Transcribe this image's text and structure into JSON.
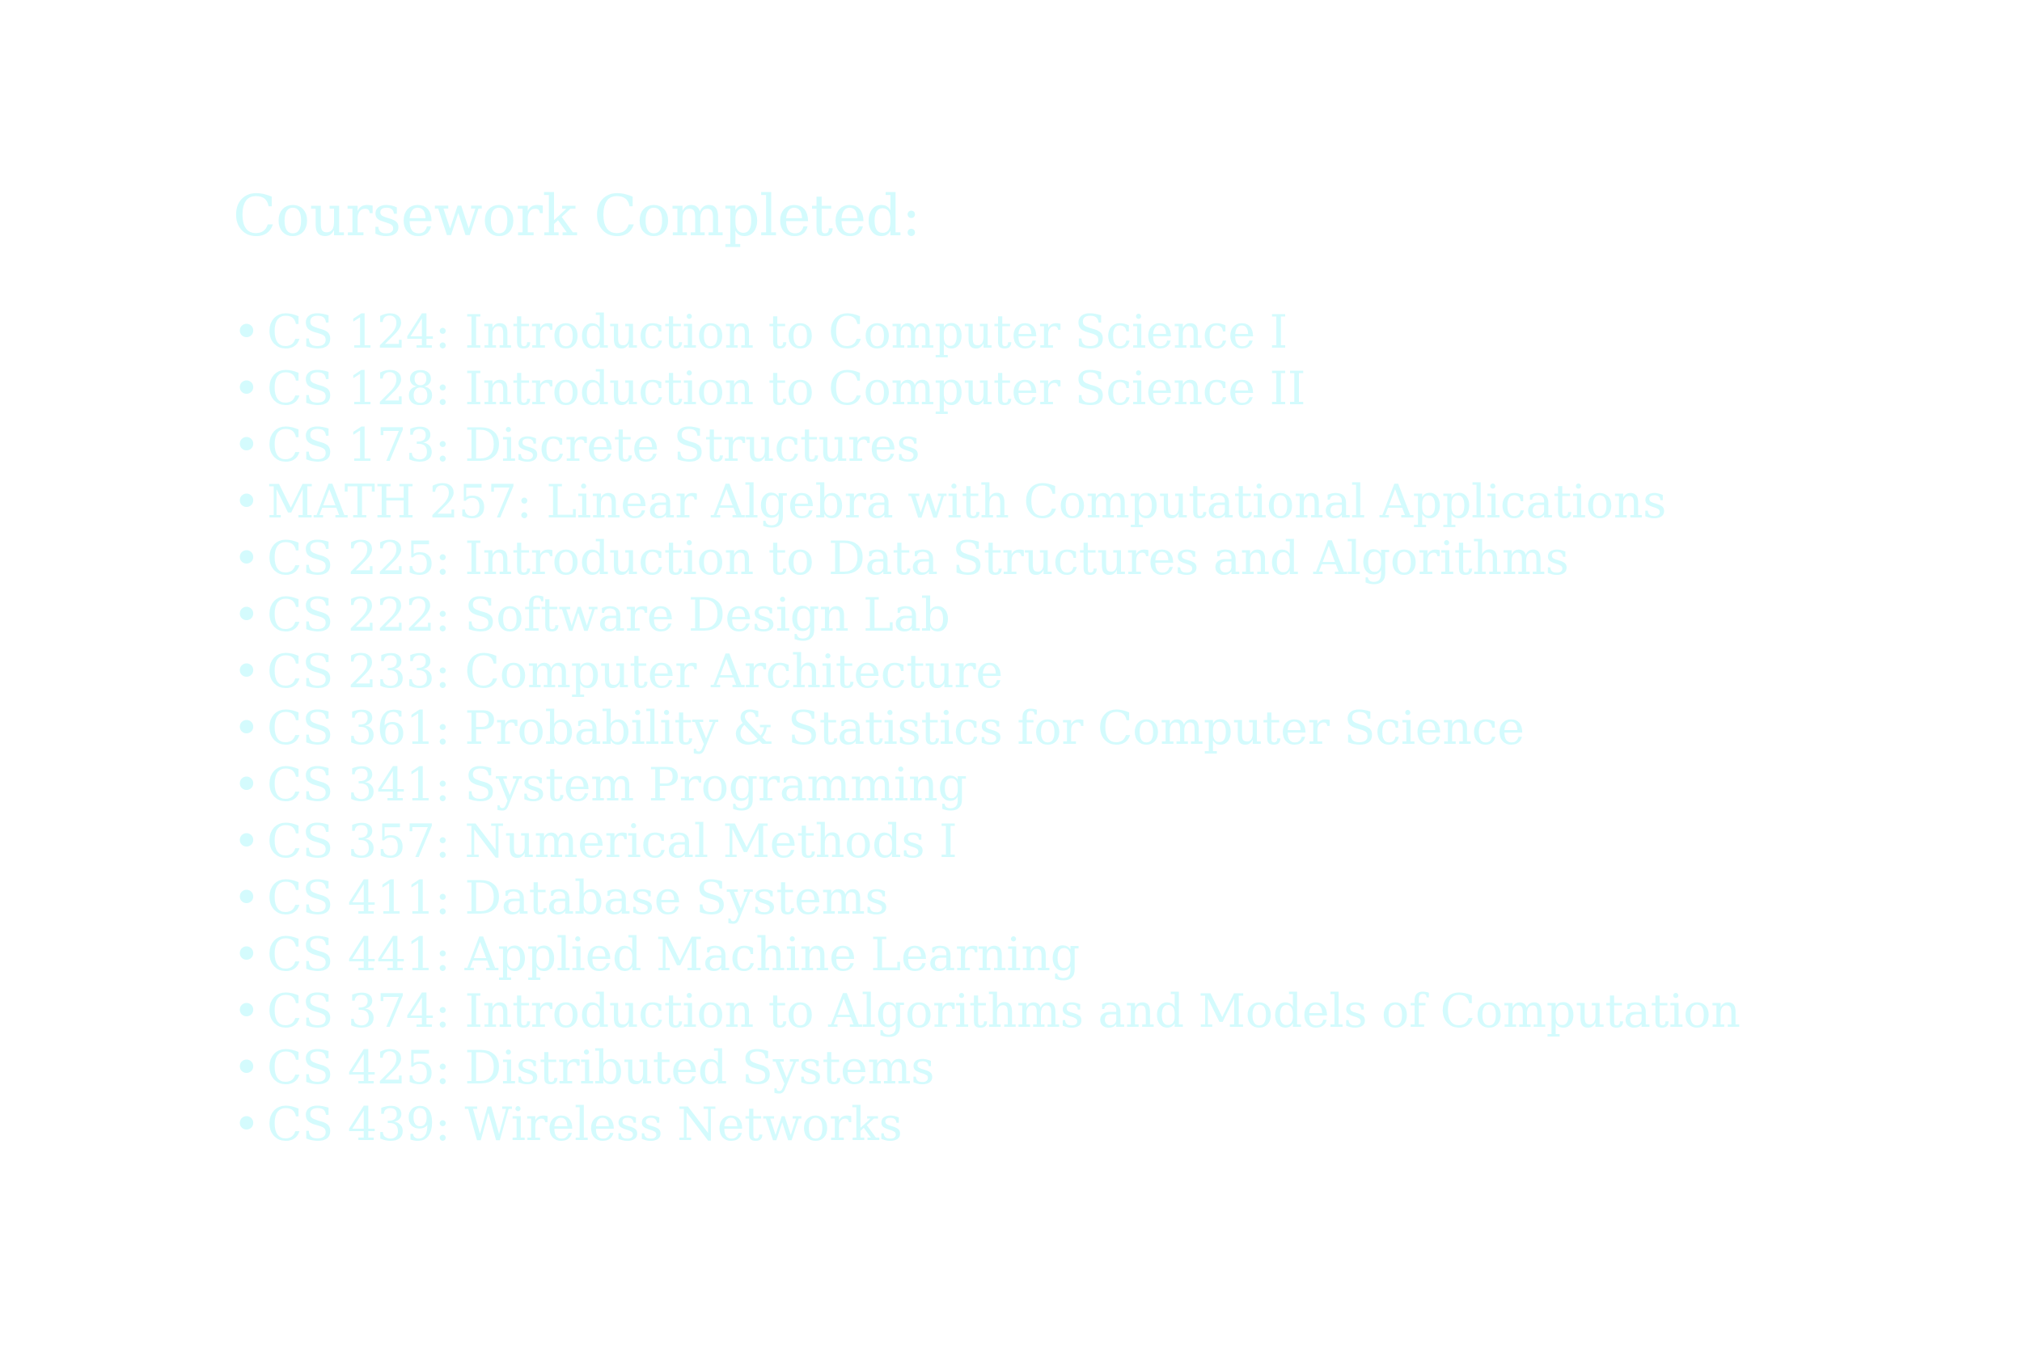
{
  "heading": "Coursework Completed:",
  "bullet_char": "•",
  "courses": [
    "CS 124: Introduction to Computer Science I",
    "CS 128: Introduction to Computer Science II",
    "CS 173: Discrete Structures",
    "MATH 257: Linear Algebra with Computational Applications",
    "CS 225: Introduction to Data Structures and Algorithms",
    "CS 222: Software Design Lab",
    "CS 233: Computer Architecture",
    "CS 361: Probability & Statistics for Computer Science",
    "CS 341: System Programming",
    "CS 357: Numerical Methods I",
    "CS 411: Database Systems",
    "CS 441: Applied Machine Learning",
    "CS 374: Introduction to Algorithms and Models of Computation",
    "CS 425: Distributed Systems",
    "CS 439: Wireless Networks"
  ],
  "colors": {
    "text": "#d4fbfd",
    "background": "#ffffff"
  }
}
